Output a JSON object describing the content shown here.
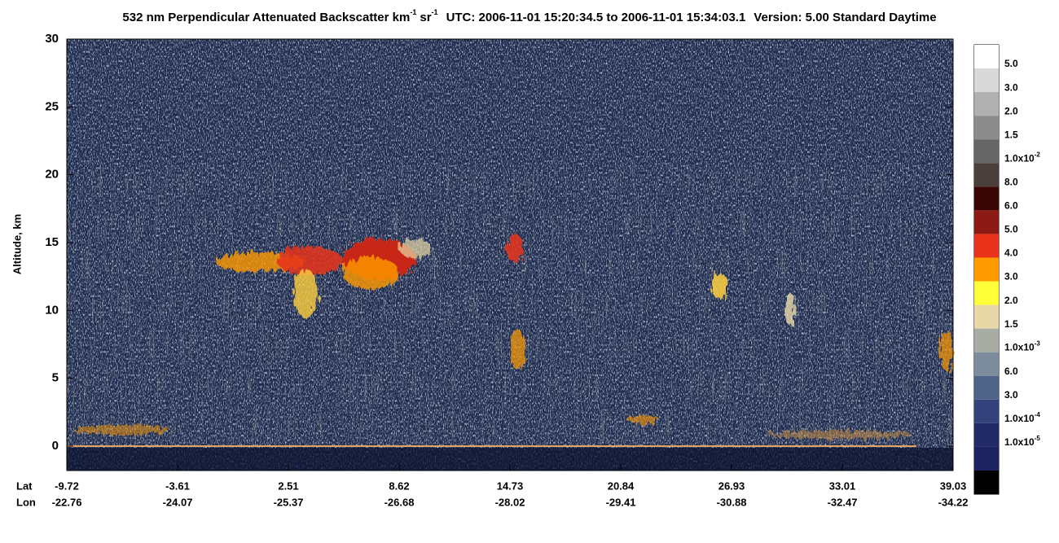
{
  "chart_data": {
    "type": "heatmap",
    "title": [
      "532 nm Perpendicular Attenuated Backscatter km",
      "-1",
      "sr",
      "-1",
      "UTC: 2006-11-01 15:20:34.5 to 2006-11-01 15:34:03.1",
      "Version: 5.00 Standard Daytime"
    ],
    "ylabel": "Altitude, km",
    "ylim": [
      -1.8,
      30
    ],
    "yticks": [
      0,
      5,
      10,
      15,
      20,
      25,
      30
    ],
    "x_rows": [
      "Lat",
      "Lon"
    ],
    "lat": [
      -9.72,
      -3.61,
      2.51,
      8.62,
      14.73,
      20.84,
      26.93,
      33.01,
      39.03
    ],
    "lon": [
      -22.76,
      -24.07,
      -25.37,
      -26.68,
      -28.02,
      -29.41,
      -30.88,
      -32.47,
      -34.22
    ],
    "colorbar": {
      "colors": [
        "#ffffff",
        "#d9d9d9",
        "#b0b0b0",
        "#8c8c8c",
        "#666666",
        "#4a3f3a",
        "#3a0505",
        "#8c1a14",
        "#e8321a",
        "#ff9a00",
        "#ffff3a",
        "#e8d8a8",
        "#a8aca4",
        "#7c8c9c",
        "#4e6488",
        "#33427a",
        "#222a66",
        "#1c2260",
        "#000000"
      ],
      "labels": [
        "5.0",
        "3.0",
        "2.0",
        "1.5",
        {
          "text": "1.0x10",
          "sup": "-2"
        },
        "8.0",
        "6.0",
        "5.0",
        "4.0",
        "3.0",
        "2.0",
        "1.5",
        {
          "text": "1.0x10",
          "sup": "-3"
        },
        "6.0",
        "3.0",
        {
          "text": "1.0x10",
          "sup": "-4"
        },
        {
          "text": "1.0x10",
          "sup": "-5"
        }
      ]
    }
  }
}
